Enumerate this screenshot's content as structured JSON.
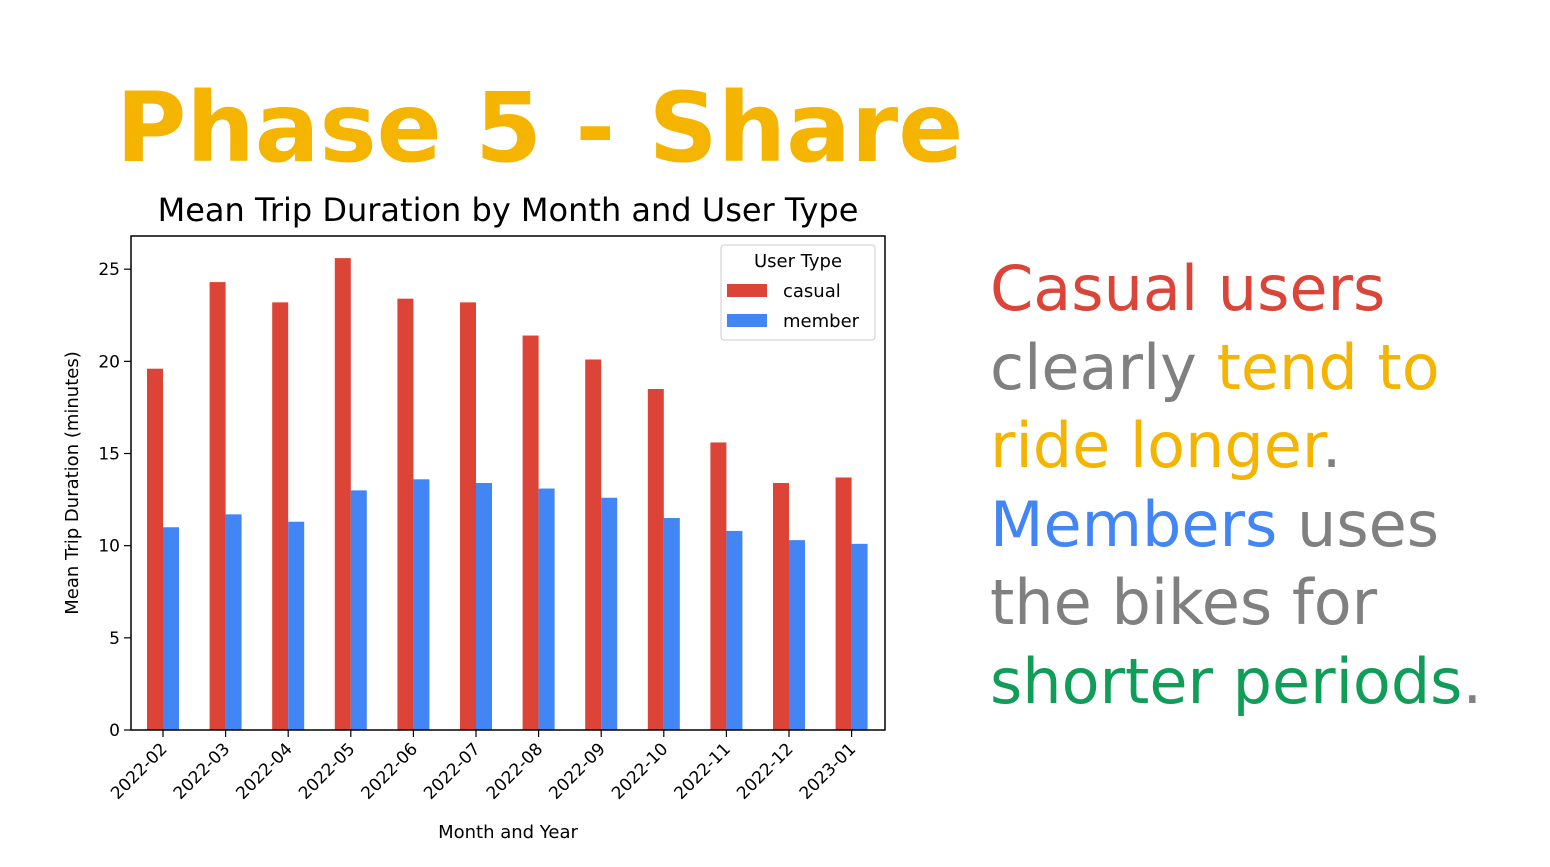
{
  "slide": {
    "title": "Phase 5 - Share"
  },
  "summary": {
    "segments": [
      {
        "text": "Casual users",
        "color": "#DB4437"
      },
      {
        "text": " clearly ",
        "color": "#808080"
      },
      {
        "text": "tend to ride longer",
        "color": "#F4B400"
      },
      {
        "text": ". ",
        "color": "#808080"
      },
      {
        "text": "Members",
        "color": "#4285F4"
      },
      {
        "text": " uses the bikes for ",
        "color": "#808080"
      },
      {
        "text": "shorter periods",
        "color": "#0F9D58"
      },
      {
        "text": ".",
        "color": "#808080"
      }
    ]
  },
  "colors": {
    "title": "#F4B400",
    "casual": "#DB4437",
    "member": "#4285F4",
    "gray_text": "#808080",
    "green_text": "#0F9D58"
  },
  "chart_data": {
    "type": "bar",
    "title": "Mean Trip Duration by Month and User Type",
    "xlabel": "Month and Year",
    "ylabel": "Mean Trip Duration (minutes)",
    "categories": [
      "2022-02",
      "2022-03",
      "2022-04",
      "2022-05",
      "2022-06",
      "2022-07",
      "2022-08",
      "2022-09",
      "2022-10",
      "2022-11",
      "2022-12",
      "2023-01"
    ],
    "series": [
      {
        "name": "casual",
        "color": "#DB4437",
        "values": [
          19.6,
          24.3,
          23.2,
          25.6,
          23.4,
          23.2,
          21.4,
          20.1,
          18.5,
          15.6,
          13.4,
          13.7
        ]
      },
      {
        "name": "member",
        "color": "#4285F4",
        "values": [
          11.0,
          11.7,
          11.3,
          13.0,
          13.6,
          13.4,
          13.1,
          12.6,
          11.5,
          10.8,
          10.3,
          10.1
        ]
      }
    ],
    "ylim": [
      0,
      26.8
    ],
    "yticks": [
      0,
      5,
      10,
      15,
      20,
      25
    ],
    "grid": false,
    "legend": {
      "title": "User Type",
      "position": "top-right"
    }
  }
}
